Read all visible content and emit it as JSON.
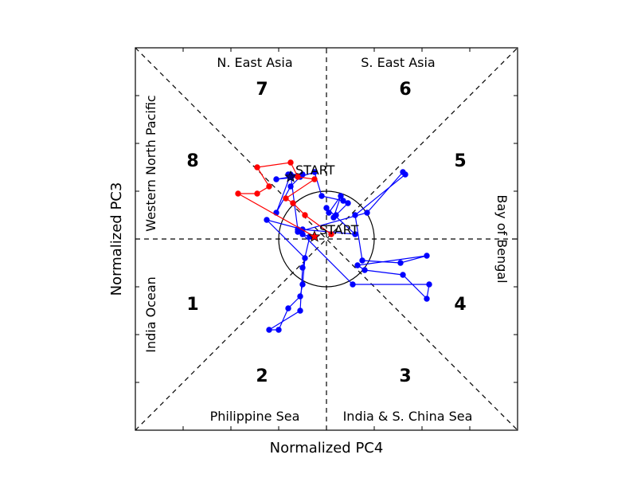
{
  "chart_data": {
    "type": "line",
    "xlabel": "Normalized PC4",
    "ylabel": "Normalized PC3",
    "xlim": [
      -4,
      4
    ],
    "ylim": [
      -4,
      4
    ],
    "reference_circle_radius": 1,
    "grid": false,
    "tick_labels": false,
    "region_labels": {
      "top_left": "N. East Asia",
      "top_right": "S. East Asia",
      "bottom_left": "Philippine Sea",
      "bottom_right": "India & S. China Sea",
      "left_upper": "Western North Pacific",
      "left_lower": "India Ocean",
      "right": "Bay of Bengal"
    },
    "phases": [
      {
        "label": "1",
        "x": -2.8,
        "y": -1.35
      },
      {
        "label": "2",
        "x": -1.35,
        "y": -2.85
      },
      {
        "label": "3",
        "x": 1.65,
        "y": -2.85
      },
      {
        "label": "4",
        "x": 2.8,
        "y": -1.35
      },
      {
        "label": "5",
        "x": 2.8,
        "y": 1.65
      },
      {
        "label": "6",
        "x": 1.65,
        "y": 3.15
      },
      {
        "label": "7",
        "x": -1.35,
        "y": 3.15
      },
      {
        "label": "8",
        "x": -2.8,
        "y": 1.65
      }
    ],
    "series": [
      {
        "color": "#0000ff",
        "start_label": "START",
        "x": [
          -0.75,
          -1.05,
          -0.55,
          -0.25,
          -0.1,
          0.35,
          0.45,
          0.2,
          0.15,
          0.3,
          0.05,
          0.0,
          0.6,
          -0.5,
          -1.25,
          -0.45,
          -0.5,
          -0.55,
          -0.8,
          -1.0,
          -1.2,
          -0.55,
          -0.5,
          -0.35,
          -0.5,
          -0.6,
          0.85,
          1.6,
          1.65,
          0.6,
          0.75,
          1.55,
          2.1,
          0.65,
          0.8,
          1.6,
          2.1,
          2.15,
          0.55,
          -0.6,
          -0.75,
          -1.05,
          -0.75,
          -0.5,
          -0.8
        ],
        "y": [
          1.3,
          1.25,
          1.3,
          1.4,
          0.9,
          0.8,
          0.75,
          0.5,
          0.45,
          0.9,
          0.55,
          0.65,
          0.1,
          0.2,
          0.4,
          -0.4,
          -0.95,
          -1.2,
          -1.45,
          -1.9,
          -1.9,
          -1.5,
          -0.6,
          0.05,
          0.1,
          0.15,
          0.55,
          1.4,
          1.35,
          0.5,
          -0.45,
          -0.5,
          -0.35,
          -0.55,
          -0.65,
          -0.75,
          -1.25,
          -0.95,
          -0.95,
          0.2,
          1.35,
          0.55,
          1.1,
          1.35,
          1.35
        ]
      },
      {
        "color": "#ff0000",
        "start_label": "START",
        "x": [
          -0.25,
          -1.85,
          -1.45,
          -1.2,
          -1.45,
          -0.75,
          -0.6,
          -0.25,
          -0.85,
          -0.7,
          -0.45,
          0.1
        ],
        "y": [
          0.05,
          0.95,
          0.95,
          1.1,
          1.5,
          1.6,
          1.3,
          1.25,
          0.85,
          0.75,
          0.5,
          0.1
        ]
      }
    ]
  }
}
